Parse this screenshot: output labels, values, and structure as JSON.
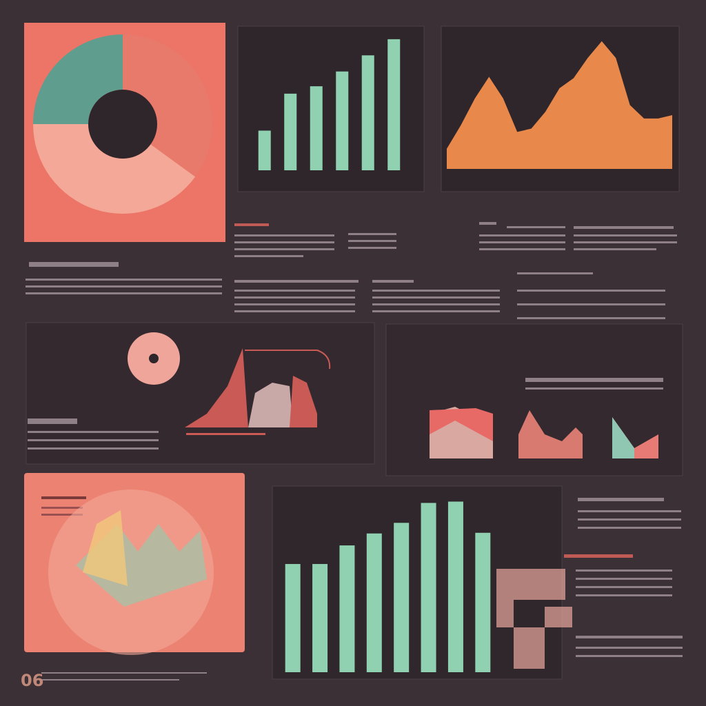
{
  "page_number": "06",
  "chart_data": [
    {
      "type": "pie",
      "values": [
        35,
        40,
        25
      ],
      "colors": [
        "#e87a6c",
        "#f4a898",
        "#5f9e8e"
      ]
    },
    {
      "type": "bar",
      "values": [
        59,
        114,
        125,
        147,
        171,
        195
      ],
      "ylim": [
        0,
        200
      ],
      "color": "#8fd1b0"
    },
    {
      "type": "area",
      "values": [
        30,
        65,
        105,
        137,
        105,
        55,
        60,
        85,
        120,
        135,
        165,
        190,
        165,
        95,
        75,
        75,
        80
      ],
      "ylim": [
        0,
        200
      ],
      "color": "#e8884a"
    },
    {
      "type": "bar",
      "values": [
        163,
        163,
        191,
        209,
        225,
        255,
        257,
        210
      ],
      "ylim": [
        0,
        270
      ],
      "color": "#8fd1b0"
    }
  ]
}
